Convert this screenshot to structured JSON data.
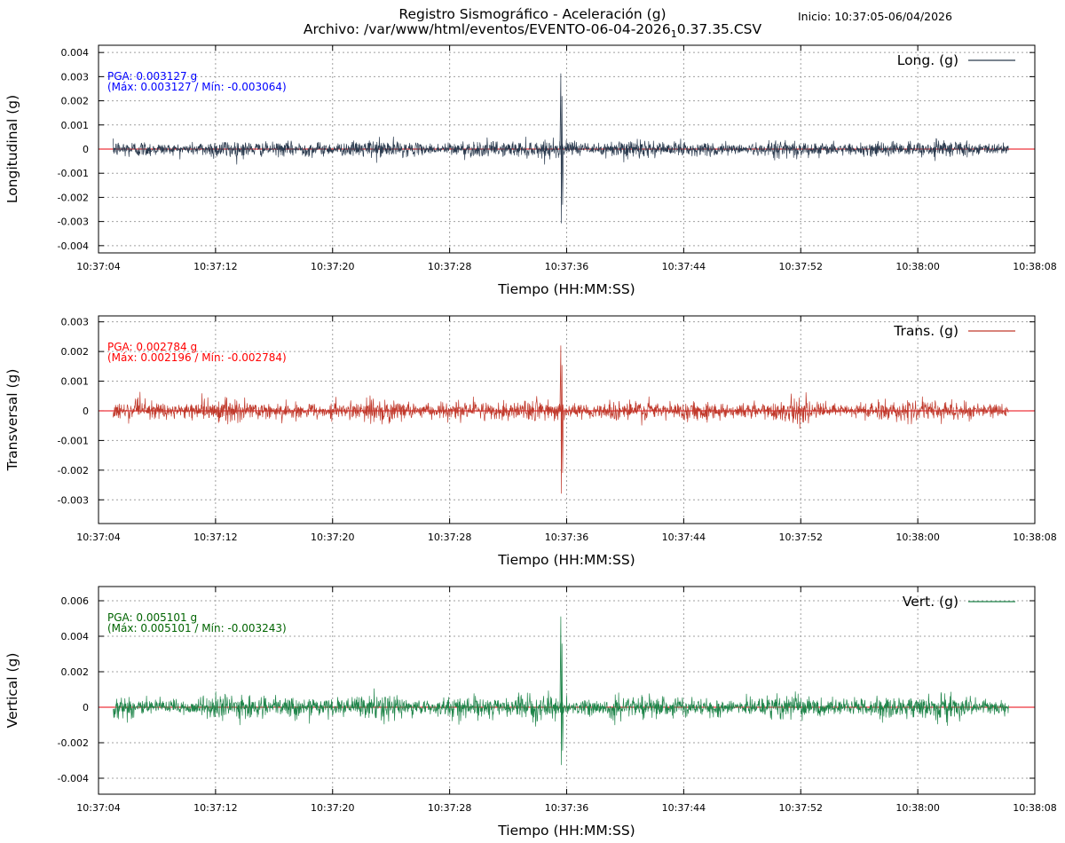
{
  "header": {
    "title": "Registro Sismográfico - Aceleración (g)",
    "file_prefix": "Archivo: /var/www/html/eventos/EVENTO-06-04-2026",
    "file_sub": "1",
    "file_suffix": "0.37.35.CSV",
    "inicio": "Inicio: 10:37:05-06/04/2026"
  },
  "chart_data": [
    {
      "type": "line",
      "id": "longitudinal",
      "ylabel": "Longitudinal (g)",
      "xlabel": "Tiempo (HH:MM:SS)",
      "legend": "Long. (g)",
      "legend_position": "top-right",
      "color": "#2a3a4e",
      "zero_line_color": "#e8000b",
      "stats_color": "#0000ff",
      "pga_text": "PGA: 0.003127 g",
      "range_text": "(Máx: 0.003127 / Mín: -0.003064)",
      "pga": 0.003127,
      "max": 0.003127,
      "min": -0.003064,
      "noise_amplitude": 0.0006,
      "event_time_s": 31.6,
      "ylim": [
        -0.0043,
        0.0043
      ],
      "yticks": [
        0.004,
        0.003,
        0.002,
        0.001,
        0,
        -0.001,
        -0.002,
        -0.003,
        -0.004
      ],
      "ytick_labels": [
        "0.004",
        "0.003",
        "0.002",
        "0.001",
        "0",
        "-0.001",
        "-0.002",
        "-0.003",
        "-0.004"
      ],
      "xlim_s": [
        0,
        64
      ],
      "xticks_s": [
        0,
        8,
        16,
        24,
        32,
        40,
        48,
        56,
        64
      ],
      "xtick_labels": [
        "10:37:04",
        "10:37:12",
        "10:37:20",
        "10:37:28",
        "10:37:36",
        "10:37:44",
        "10:37:52",
        "10:38:00",
        "10:38:08"
      ],
      "data_start_s": 1,
      "data_end_s": 62.2,
      "grid": true
    },
    {
      "type": "line",
      "id": "transversal",
      "ylabel": "Transversal (g)",
      "xlabel": "Tiempo (HH:MM:SS)",
      "legend": "Trans. (g)",
      "legend_position": "top-right",
      "color": "#c0392b",
      "zero_line_color": "#e8000b",
      "stats_color": "#ff0000",
      "pga_text": "PGA: 0.002784 g",
      "range_text": "(Máx: 0.002196 / Mín: -0.002784)",
      "pga": 0.002784,
      "max": 0.002196,
      "min": -0.002784,
      "noise_amplitude": 0.0006,
      "event_time_s": 31.6,
      "ylim": [
        -0.0038,
        0.0032
      ],
      "yticks": [
        0.003,
        0.002,
        0.001,
        0,
        -0.001,
        -0.002,
        -0.003
      ],
      "ytick_labels": [
        "0.003",
        "0.002",
        "0.001",
        "0",
        "-0.001",
        "-0.002",
        "-0.003"
      ],
      "xlim_s": [
        0,
        64
      ],
      "xticks_s": [
        0,
        8,
        16,
        24,
        32,
        40,
        48,
        56,
        64
      ],
      "xtick_labels": [
        "10:37:04",
        "10:37:12",
        "10:37:20",
        "10:37:28",
        "10:37:36",
        "10:37:44",
        "10:37:52",
        "10:38:00",
        "10:38:08"
      ],
      "data_start_s": 1,
      "data_end_s": 62.2,
      "grid": true
    },
    {
      "type": "line",
      "id": "vertical",
      "ylabel": "Vertical (g)",
      "xlabel": "Tiempo (HH:MM:SS)",
      "legend": "Vert. (g)",
      "legend_position": "top-right",
      "color": "#1e8449",
      "zero_line_color": "#e8000b",
      "stats_color": "#006400",
      "pga_text": "PGA: 0.005101 g",
      "range_text": "(Máx: 0.005101 / Mín: -0.003243)",
      "pga": 0.005101,
      "max": 0.005101,
      "min": -0.003243,
      "noise_amplitude": 0.0011,
      "event_time_s": 31.6,
      "ylim": [
        -0.0049,
        0.0068
      ],
      "yticks": [
        0.006,
        0.004,
        0.002,
        0,
        -0.002,
        -0.004
      ],
      "ytick_labels": [
        "0.006",
        "0.004",
        "0.002",
        "0",
        "-0.002",
        "-0.004"
      ],
      "xlim_s": [
        0,
        64
      ],
      "xticks_s": [
        0,
        8,
        16,
        24,
        32,
        40,
        48,
        56,
        64
      ],
      "xtick_labels": [
        "10:37:04",
        "10:37:12",
        "10:37:20",
        "10:37:28",
        "10:37:36",
        "10:37:44",
        "10:37:52",
        "10:38:00",
        "10:38:08"
      ],
      "data_start_s": 1,
      "data_end_s": 62.2,
      "grid": true
    }
  ]
}
